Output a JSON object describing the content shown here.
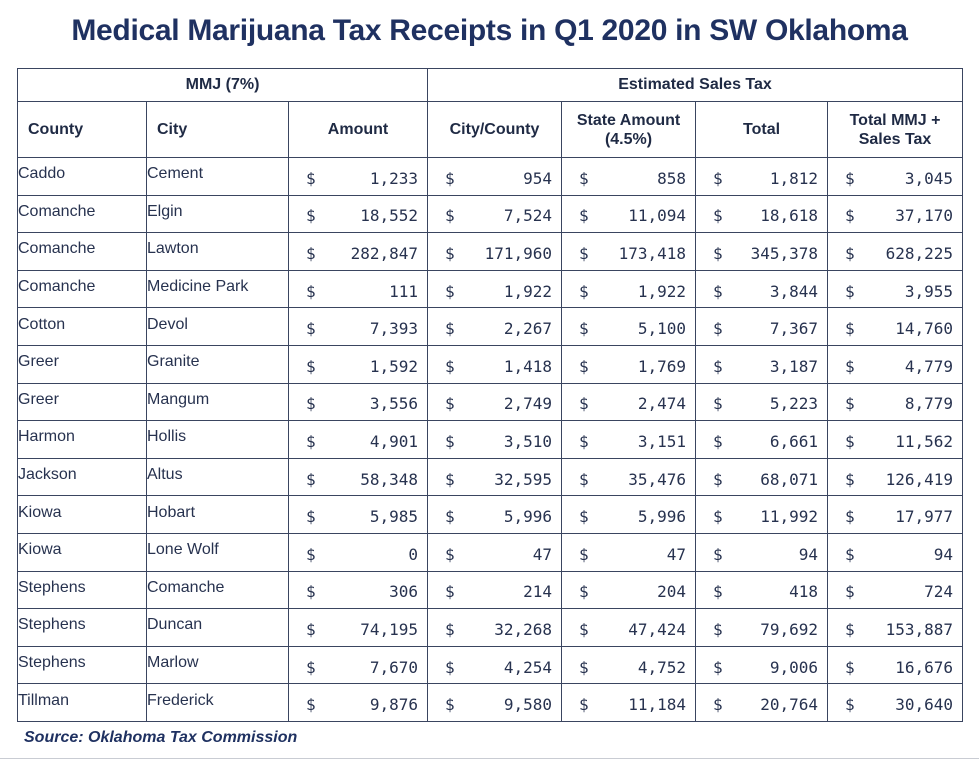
{
  "title": "Medical Marijuana Tax Receipts in Q1 2020 in SW Oklahoma",
  "group_headers": {
    "mmj": "MMJ (7%)",
    "sales_tax": "Estimated Sales Tax"
  },
  "column_headers": {
    "county": "County",
    "city": "City",
    "amount": "Amount",
    "city_county": "City/County",
    "state_amount_line1": "State Amount",
    "state_amount_line2": "(4.5%)",
    "total": "Total",
    "total_mmj_line1": "Total MMJ +",
    "total_mmj_line2": "Sales Tax"
  },
  "currency_symbol": "$",
  "rows": [
    {
      "county": "Caddo",
      "city": "Cement",
      "amount": "1,233",
      "city_county": "954",
      "state_amount": "858",
      "total": "1,812",
      "total_mmj": "3,045"
    },
    {
      "county": "Comanche",
      "city": "Elgin",
      "amount": "18,552",
      "city_county": "7,524",
      "state_amount": "11,094",
      "total": "18,618",
      "total_mmj": "37,170"
    },
    {
      "county": "Comanche",
      "city": "Lawton",
      "amount": "282,847",
      "city_county": "171,960",
      "state_amount": "173,418",
      "total": "345,378",
      "total_mmj": "628,225"
    },
    {
      "county": "Comanche",
      "city": "Medicine Park",
      "amount": "111",
      "city_county": "1,922",
      "state_amount": "1,922",
      "total": "3,844",
      "total_mmj": "3,955"
    },
    {
      "county": "Cotton",
      "city": "Devol",
      "amount": "7,393",
      "city_county": "2,267",
      "state_amount": "5,100",
      "total": "7,367",
      "total_mmj": "14,760"
    },
    {
      "county": "Greer",
      "city": "Granite",
      "amount": "1,592",
      "city_county": "1,418",
      "state_amount": "1,769",
      "total": "3,187",
      "total_mmj": "4,779"
    },
    {
      "county": "Greer",
      "city": "Mangum",
      "amount": "3,556",
      "city_county": "2,749",
      "state_amount": "2,474",
      "total": "5,223",
      "total_mmj": "8,779"
    },
    {
      "county": "Harmon",
      "city": "Hollis",
      "amount": "4,901",
      "city_county": "3,510",
      "state_amount": "3,151",
      "total": "6,661",
      "total_mmj": "11,562"
    },
    {
      "county": "Jackson",
      "city": "Altus",
      "amount": "58,348",
      "city_county": "32,595",
      "state_amount": "35,476",
      "total": "68,071",
      "total_mmj": "126,419"
    },
    {
      "county": "Kiowa",
      "city": "Hobart",
      "amount": "5,985",
      "city_county": "5,996",
      "state_amount": "5,996",
      "total": "11,992",
      "total_mmj": "17,977"
    },
    {
      "county": "Kiowa",
      "city": "Lone Wolf",
      "amount": "0",
      "city_county": "47",
      "state_amount": "47",
      "total": "94",
      "total_mmj": "94"
    },
    {
      "county": "Stephens",
      "city": "Comanche",
      "amount": "306",
      "city_county": "214",
      "state_amount": "204",
      "total": "418",
      "total_mmj": "724"
    },
    {
      "county": "Stephens",
      "city": "Duncan",
      "amount": "74,195",
      "city_county": "32,268",
      "state_amount": "47,424",
      "total": "79,692",
      "total_mmj": "153,887"
    },
    {
      "county": "Stephens",
      "city": "Marlow",
      "amount": "7,670",
      "city_county": "4,254",
      "state_amount": "4,752",
      "total": "9,006",
      "total_mmj": "16,676"
    },
    {
      "county": "Tillman",
      "city": "Frederick",
      "amount": "9,876",
      "city_county": "9,580",
      "state_amount": "11,184",
      "total": "20,764",
      "total_mmj": "30,640"
    }
  ],
  "source": "Source: Oklahoma Tax Commission",
  "colors": {
    "title": "#1f3161",
    "text": "#27324f",
    "border": "#3a4560"
  }
}
